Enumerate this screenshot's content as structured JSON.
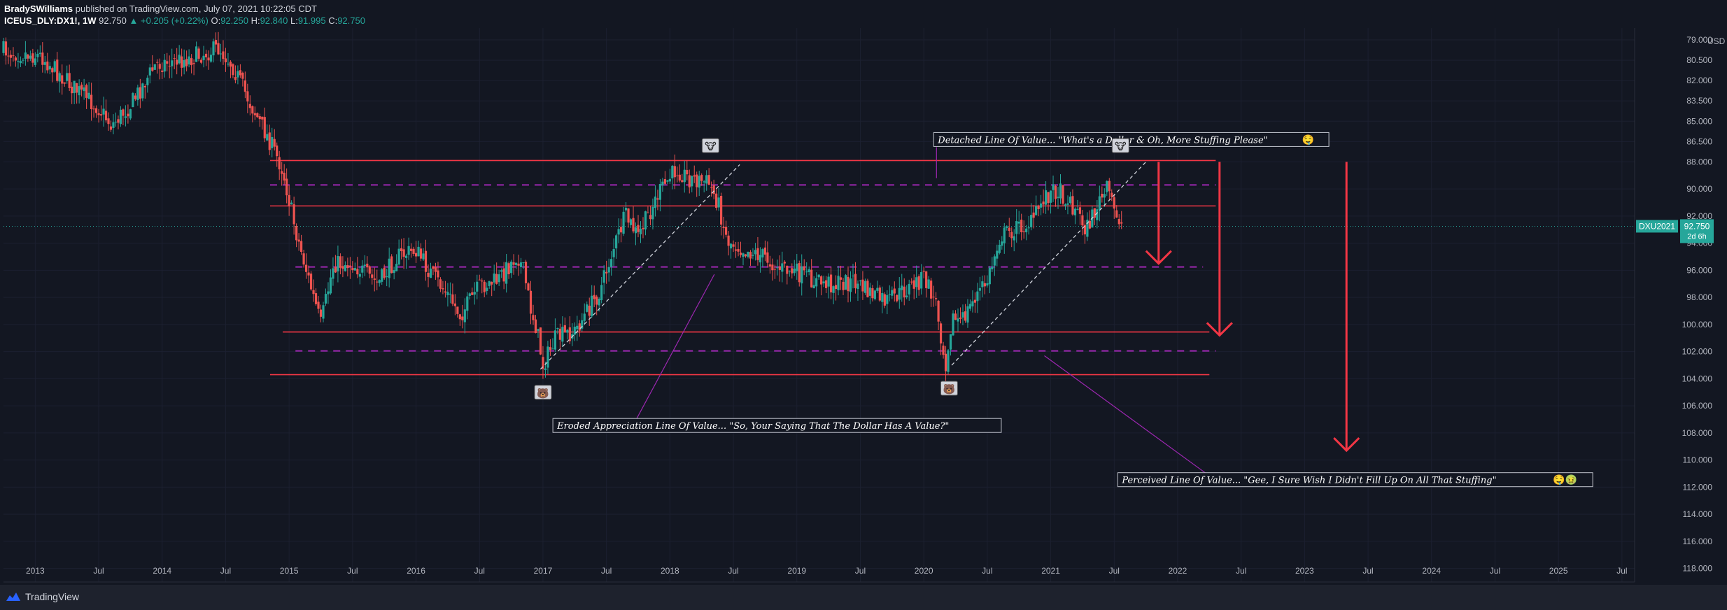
{
  "publisher": {
    "author": "BradySWilliams",
    "text": "published on TradingView.com, July 07, 2021 10:22:05 CDT"
  },
  "quote": {
    "symbol": "ICEUS_DLY:DX1!, 1W",
    "last": "92.750",
    "change": "▲ +0.205 (+0.22%)",
    "o_label": "O:",
    "o": "92.250",
    "h_label": "H:",
    "h": "92.840",
    "l_label": "L:",
    "l": "91.995",
    "c_label": "C:",
    "c": "92.750"
  },
  "footer": {
    "brand": "TradingView"
  },
  "colors": {
    "bg": "#131722",
    "up": "#26a69a",
    "down": "#ef5350",
    "red_line": "#f23645",
    "purple": "#9c27b0",
    "text": "#d1d4dc"
  },
  "chart_data": {
    "type": "candlestick",
    "price_axis": {
      "inverted": true,
      "range": [
        77.5,
        119
      ],
      "currency": "USD",
      "ticks": [
        "79.000",
        "80.500",
        "82.000",
        "83.500",
        "85.000",
        "86.500",
        "88.000",
        "90.000",
        "92.000",
        "94.000",
        "96.000",
        "98.000",
        "100.000",
        "102.000",
        "104.000",
        "106.000",
        "108.000",
        "110.000",
        "112.000",
        "114.000",
        "116.000",
        "118.000"
      ],
      "tick_values": [
        79,
        80.5,
        82,
        83.5,
        85,
        86.5,
        88,
        90,
        92,
        94,
        96,
        98,
        100,
        102,
        104,
        106,
        108,
        110,
        112,
        114,
        116,
        118
      ],
      "current_label": "DXU2021",
      "current_price": "92.750",
      "current_value": 92.75,
      "countdown": "2d 6h"
    },
    "time_axis": {
      "range": [
        2012.75,
        2025.6
      ],
      "labels": [
        "2013",
        "Jul",
        "2014",
        "Jul",
        "2015",
        "Jul",
        "2016",
        "Jul",
        "2017",
        "Jul",
        "2018",
        "Jul",
        "2019",
        "Jul",
        "2020",
        "Jul",
        "2021",
        "Jul",
        "2022",
        "Jul",
        "2023",
        "Jul",
        "2024",
        "Jul",
        "2025",
        "Jul"
      ],
      "label_values": [
        2013.0,
        2013.5,
        2014.0,
        2014.5,
        2015.0,
        2015.5,
        2016.0,
        2016.5,
        2017.0,
        2017.5,
        2018.0,
        2018.5,
        2019.0,
        2019.5,
        2020.0,
        2020.5,
        2021.0,
        2021.5,
        2022.0,
        2022.5,
        2023.0,
        2023.5,
        2024.0,
        2024.5,
        2025.0,
        2025.5
      ]
    },
    "price_path": [
      [
        2012.75,
        79.8
      ],
      [
        2013.05,
        80.2
      ],
      [
        2013.3,
        82.5
      ],
      [
        2013.5,
        84.0
      ],
      [
        2013.6,
        85.3
      ],
      [
        2013.75,
        83.8
      ],
      [
        2013.95,
        80.8
      ],
      [
        2014.2,
        80.4
      ],
      [
        2014.45,
        79.6
      ],
      [
        2014.55,
        80.8
      ],
      [
        2014.7,
        83.8
      ],
      [
        2014.85,
        86.5
      ],
      [
        2014.95,
        88.6
      ],
      [
        2015.05,
        93.0
      ],
      [
        2015.17,
        97.2
      ],
      [
        2015.25,
        100.0
      ],
      [
        2015.35,
        95.5
      ],
      [
        2015.5,
        95.5
      ],
      [
        2015.7,
        97.0
      ],
      [
        2015.85,
        95.0
      ],
      [
        2016.0,
        94.5
      ],
      [
        2016.1,
        96.0
      ],
      [
        2016.25,
        97.8
      ],
      [
        2016.35,
        99.3
      ],
      [
        2016.5,
        97.2
      ],
      [
        2016.65,
        96.7
      ],
      [
        2016.8,
        94.8
      ],
      [
        2016.85,
        96.2
      ],
      [
        2016.9,
        98.7
      ],
      [
        2016.95,
        100.3
      ],
      [
        2017.0,
        103.0
      ],
      [
        2017.1,
        101.0
      ],
      [
        2017.25,
        100.5
      ],
      [
        2017.45,
        97.5
      ],
      [
        2017.55,
        94.5
      ],
      [
        2017.65,
        92.0
      ],
      [
        2017.75,
        93.5
      ],
      [
        2017.9,
        90.5
      ],
      [
        2018.05,
        88.5
      ],
      [
        2018.15,
        89.2
      ],
      [
        2018.3,
        89.5
      ],
      [
        2018.38,
        91.0
      ],
      [
        2018.45,
        93.8
      ],
      [
        2018.6,
        94.5
      ],
      [
        2018.75,
        95.0
      ],
      [
        2018.85,
        95.8
      ],
      [
        2019.0,
        96.2
      ],
      [
        2019.15,
        96.8
      ],
      [
        2019.3,
        97.0
      ],
      [
        2019.45,
        96.8
      ],
      [
        2019.55,
        97.5
      ],
      [
        2019.7,
        98.3
      ],
      [
        2019.8,
        97.8
      ],
      [
        2019.9,
        97.2
      ],
      [
        2020.0,
        96.5
      ],
      [
        2020.1,
        98.5
      ],
      [
        2020.17,
        103.0
      ],
      [
        2020.22,
        99.5
      ],
      [
        2020.3,
        99.8
      ],
      [
        2020.4,
        98.0
      ],
      [
        2020.5,
        96.8
      ],
      [
        2020.6,
        93.5
      ],
      [
        2020.75,
        92.8
      ],
      [
        2020.85,
        92.5
      ],
      [
        2020.95,
        90.5
      ],
      [
        2021.05,
        90.0
      ],
      [
        2021.2,
        91.5
      ],
      [
        2021.28,
        93.0
      ],
      [
        2021.38,
        91.0
      ],
      [
        2021.45,
        90.0
      ],
      [
        2021.5,
        91.5
      ],
      [
        2021.55,
        92.3
      ],
      [
        2021.56,
        92.75
      ]
    ],
    "price_path_note": "approximate closing path, price-axis values (chart is plotted inverted)",
    "horizontal_lines": [
      {
        "style": "solid",
        "color": "red",
        "price": 87.9,
        "from": 2014.85,
        "to": 2022.3
      },
      {
        "style": "solid",
        "color": "red",
        "price": 91.25,
        "from": 2014.85,
        "to": 2022.3
      },
      {
        "style": "solid",
        "color": "red",
        "price": 100.55,
        "from": 2014.95,
        "to": 2022.25
      },
      {
        "style": "solid",
        "color": "red",
        "price": 103.7,
        "from": 2014.85,
        "to": 2022.25
      },
      {
        "style": "dashed",
        "color": "purple",
        "price": 89.7,
        "from": 2014.85,
        "to": 2022.3
      },
      {
        "style": "dashed",
        "color": "purple",
        "price": 95.75,
        "from": 2015.05,
        "to": 2022.2
      },
      {
        "style": "dashed",
        "color": "purple",
        "price": 101.95,
        "from": 2015.05,
        "to": 2022.3
      }
    ],
    "trend_lines": [
      {
        "from": [
          2016.98,
          103.3
        ],
        "to": [
          2018.55,
          88.2
        ]
      },
      {
        "from": [
          2020.22,
          103.0
        ],
        "to": [
          2021.75,
          88.0
        ]
      }
    ],
    "down_arrows": [
      {
        "x": 2021.85,
        "from": 88.0,
        "to": 95.5
      },
      {
        "x": 2022.33,
        "from": 88.0,
        "to": 100.8
      },
      {
        "x": 2023.33,
        "from": 88.0,
        "to": 109.3
      }
    ],
    "annotations": [
      {
        "text": "Detached Line Of Value... \"What's a Dollar & Oh, More Stuffing Please\"",
        "emoji": "🤤",
        "box": [
          2020.1,
          86.4
        ],
        "arrow_to": [
          2020.1,
          89.2
        ]
      },
      {
        "text": "Eroded Appreciation Line Of Value... \"So, Your Saying That The Dollar Has A Value?\"",
        "emoji": "",
        "box": [
          2017.1,
          107.5
        ],
        "arrow_to": [
          2018.35,
          96.3
        ]
      },
      {
        "text": "Perceived Line Of Value... \"Gee, I Sure Wish I Didn't Fill Up On All That Stuffing\"",
        "emoji": "🤤🤢",
        "box": [
          2021.55,
          111.5
        ],
        "arrow_to": [
          2020.95,
          102.3
        ]
      }
    ],
    "markers": [
      {
        "name": "bull",
        "emoji": "🐮",
        "x": 2018.32,
        "price": 86.8
      },
      {
        "name": "bull",
        "emoji": "🐮",
        "x": 2021.55,
        "price": 86.8
      },
      {
        "name": "bear",
        "emoji": "🐻",
        "x": 2017.0,
        "price": 105.0
      },
      {
        "name": "bear",
        "emoji": "🐻",
        "x": 2020.2,
        "price": 104.7
      }
    ]
  }
}
